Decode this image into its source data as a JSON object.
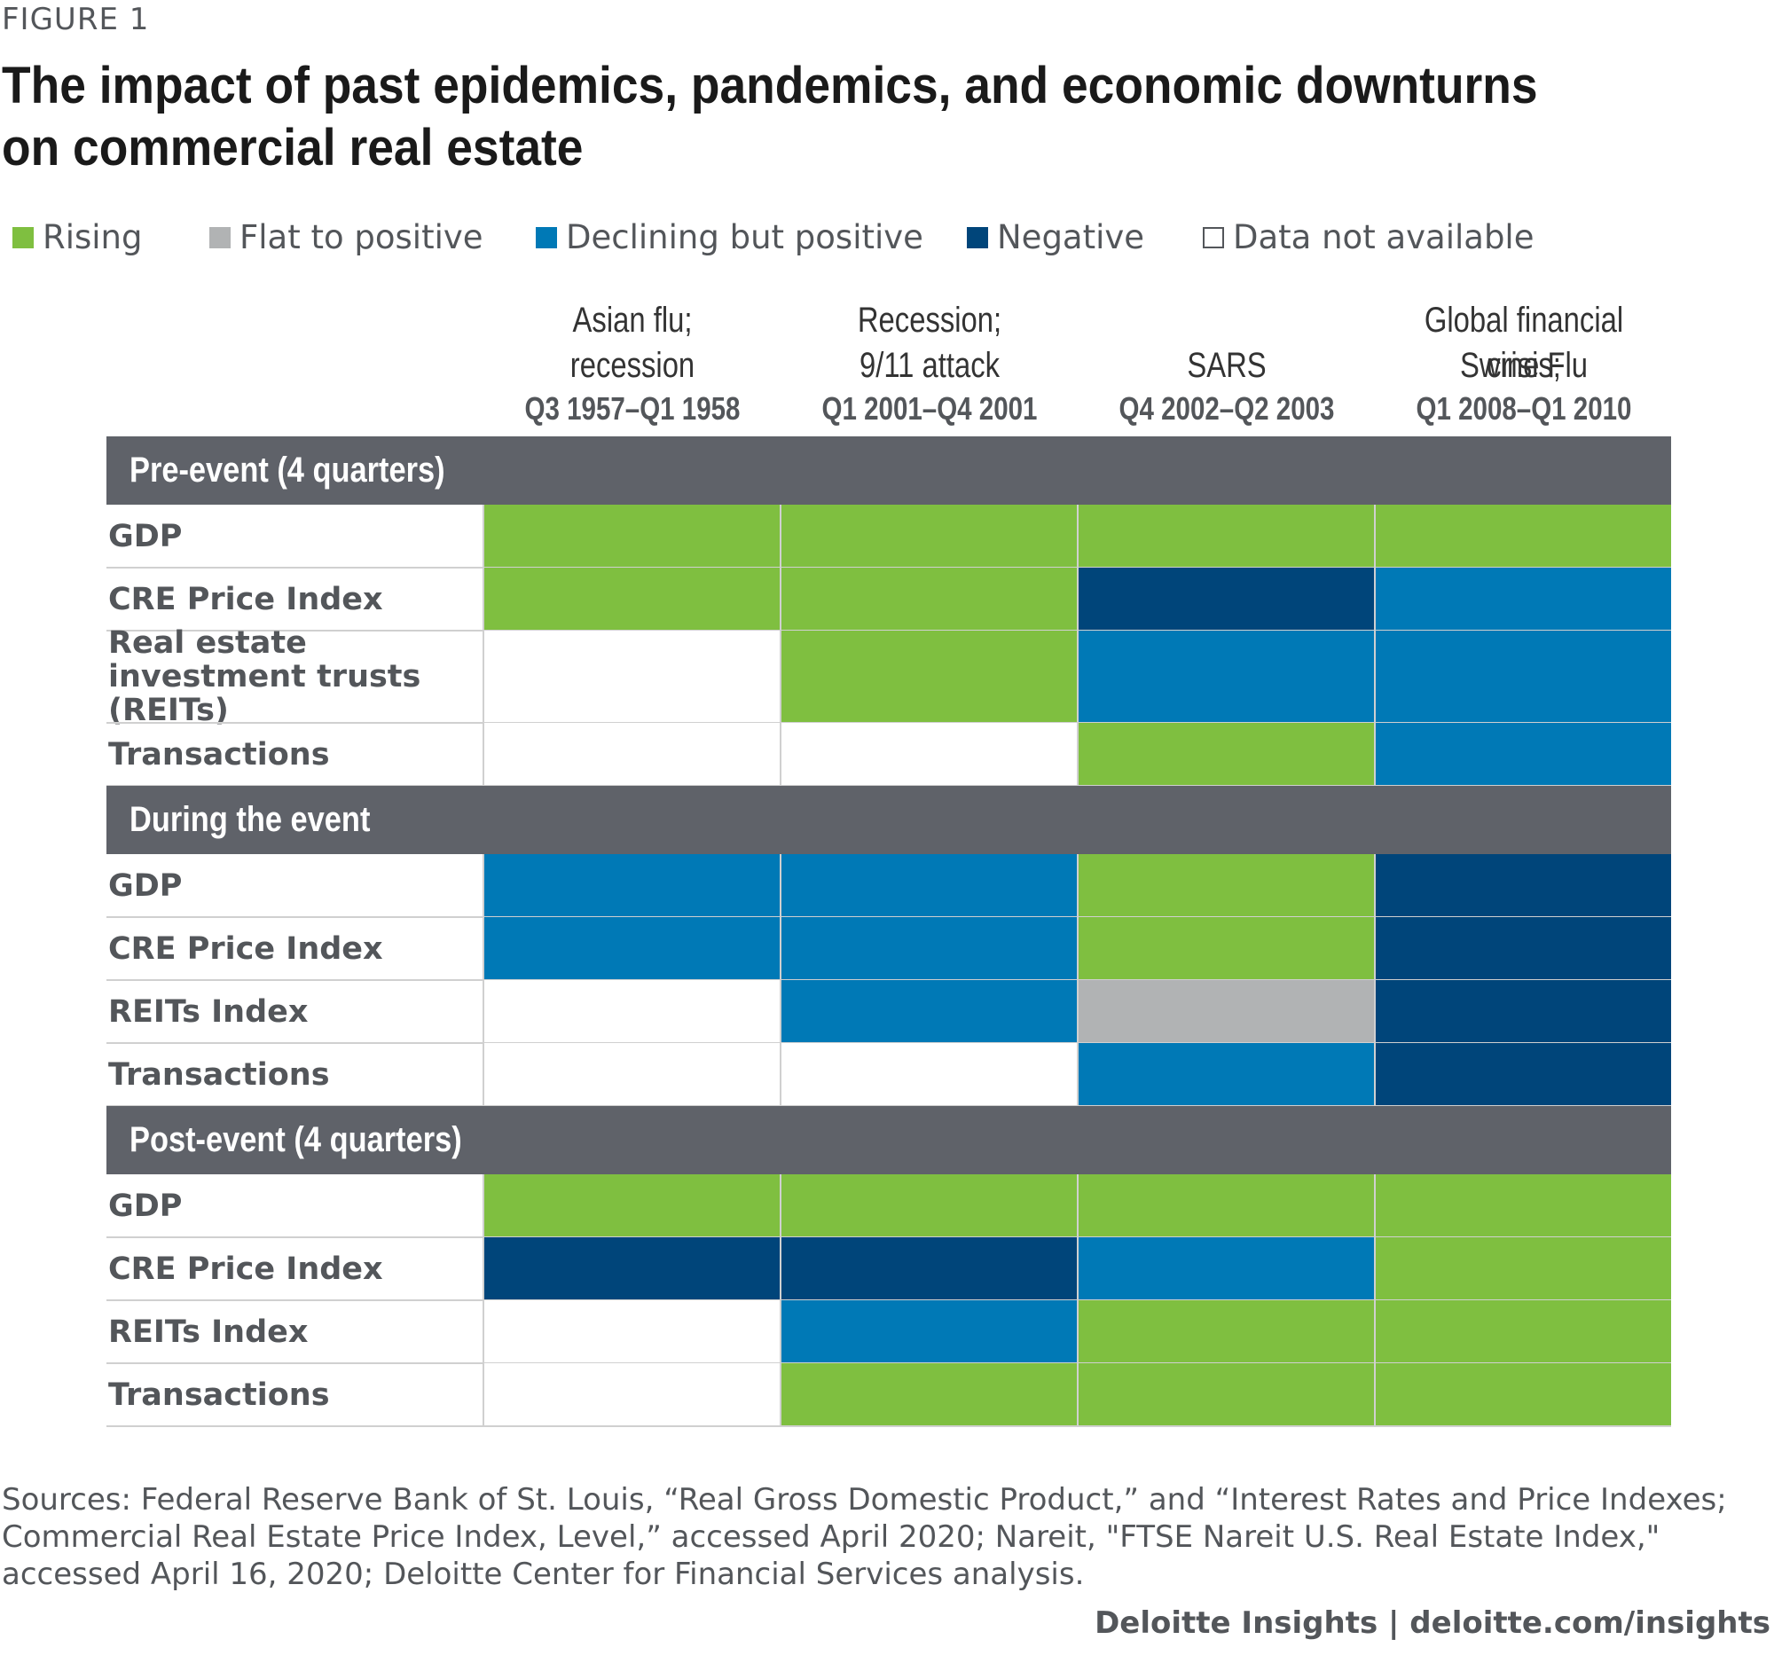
{
  "figure_label": "FIGURE 1",
  "chart_data": {
    "type": "table",
    "title": "The impact of past epidemics, pandemics, and economic downturns on commercial real estate",
    "legend": [
      {
        "key": "rising",
        "label": "Rising",
        "color": "#7fbf40"
      },
      {
        "key": "flat",
        "label": "Flat to positive",
        "color": "#b1b3b4"
      },
      {
        "key": "declining",
        "label": "Declining but positive",
        "color": "#0079b6"
      },
      {
        "key": "negative",
        "label": "Negative",
        "color": "#00457a"
      },
      {
        "key": "na",
        "label": "Data not available",
        "color": "#ffffff"
      }
    ],
    "columns": [
      {
        "lines": [
          "Asian flu;",
          "recession"
        ],
        "dates": "Q3 1957–Q1 1958"
      },
      {
        "lines": [
          "Recession;",
          "9/11 attack"
        ],
        "dates": "Q1 2001–Q4 2001"
      },
      {
        "lines": [
          "",
          "SARS"
        ],
        "dates": "Q4 2002–Q2 2003"
      },
      {
        "lines": [
          "Global financial crisis;",
          "Swine Flu"
        ],
        "dates": "Q1 2008–Q1 2010"
      }
    ],
    "sections": [
      {
        "name": "Pre-event (4 quarters)",
        "rows": [
          {
            "label": "GDP",
            "values": [
              "rising",
              "rising",
              "rising",
              "rising"
            ]
          },
          {
            "label": "CRE Price Index",
            "values": [
              "rising",
              "rising",
              "negative",
              "declining"
            ]
          },
          {
            "label": "Real estate investment trusts (REITs)",
            "values": [
              "na",
              "rising",
              "declining",
              "declining"
            ]
          },
          {
            "label": "Transactions",
            "values": [
              "na",
              "na",
              "rising",
              "declining"
            ]
          }
        ]
      },
      {
        "name": "During the event",
        "rows": [
          {
            "label": "GDP",
            "values": [
              "declining",
              "declining",
              "rising",
              "negative"
            ]
          },
          {
            "label": "CRE Price Index",
            "values": [
              "declining",
              "declining",
              "rising",
              "negative"
            ]
          },
          {
            "label": "REITs Index",
            "values": [
              "na",
              "declining",
              "flat",
              "negative"
            ]
          },
          {
            "label": "Transactions",
            "values": [
              "na",
              "na",
              "declining",
              "negative"
            ]
          }
        ]
      },
      {
        "name": "Post-event (4 quarters)",
        "rows": [
          {
            "label": "GDP",
            "values": [
              "rising",
              "rising",
              "rising",
              "rising"
            ]
          },
          {
            "label": "CRE Price Index",
            "values": [
              "negative",
              "negative",
              "declining",
              "rising"
            ]
          },
          {
            "label": "REITs Index",
            "values": [
              "na",
              "declining",
              "rising",
              "rising"
            ]
          },
          {
            "label": "Transactions",
            "values": [
              "na",
              "rising",
              "rising",
              "rising"
            ]
          }
        ]
      }
    ]
  },
  "sources": "Sources: Federal Reserve Bank of St. Louis, “Real Gross Domestic Product,” and “Interest Rates and Price Indexes; Commercial Real Estate Price Index, Level,” accessed April 2020; Nareit, \"FTSE Nareit U.S. Real Estate Index,\" accessed April 16, 2020; Deloitte Center for Financial Services analysis.",
  "credit": "Deloitte Insights | deloitte.com/insights"
}
